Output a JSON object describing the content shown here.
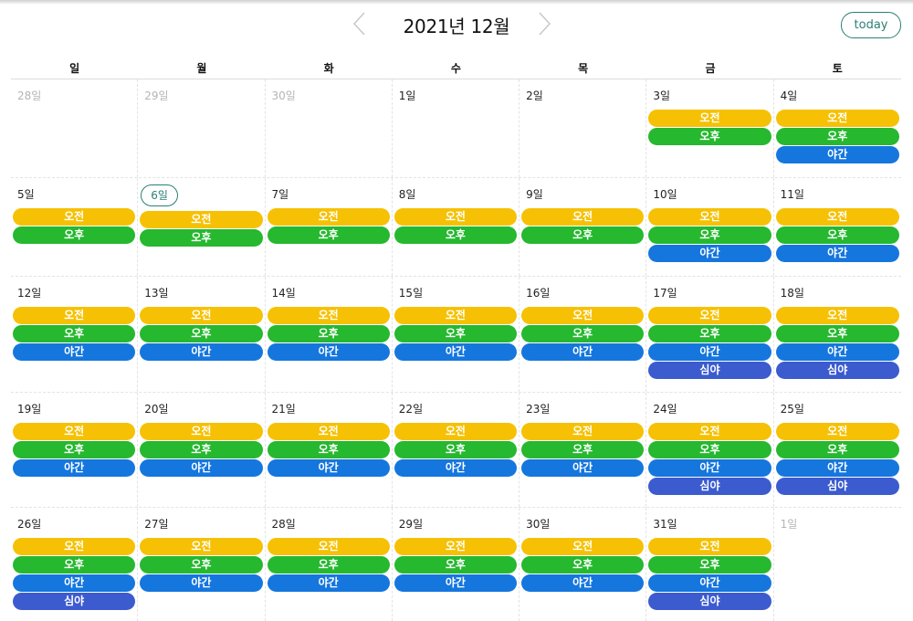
{
  "header": {
    "title": "2021년 12월",
    "today_label": "today",
    "prev_icon": "chevron-left-icon",
    "next_icon": "chevron-right-icon"
  },
  "weekdays": [
    "일",
    "월",
    "화",
    "수",
    "목",
    "금",
    "토"
  ],
  "shifts": {
    "am": "오전",
    "pm": "오후",
    "evening": "야간",
    "night": "심야"
  },
  "colors": {
    "am": "#f6c104",
    "pm": "#26b82f",
    "evening": "#1576de",
    "night": "#3b5bcf",
    "accent": "#2b7f76"
  },
  "weeks": [
    {
      "days": [
        {
          "label": "28일",
          "other": true,
          "events": []
        },
        {
          "label": "29일",
          "other": true,
          "events": []
        },
        {
          "label": "30일",
          "other": true,
          "events": []
        },
        {
          "label": "1일",
          "events": []
        },
        {
          "label": "2일",
          "events": []
        },
        {
          "label": "3일",
          "events": [
            "am",
            "pm"
          ]
        },
        {
          "label": "4일",
          "events": [
            "am",
            "pm",
            "evening"
          ]
        }
      ]
    },
    {
      "days": [
        {
          "label": "5일",
          "events": [
            "am",
            "pm"
          ]
        },
        {
          "label": "6일",
          "today": true,
          "events": [
            "am",
            "pm"
          ]
        },
        {
          "label": "7일",
          "events": [
            "am",
            "pm"
          ]
        },
        {
          "label": "8일",
          "events": [
            "am",
            "pm"
          ]
        },
        {
          "label": "9일",
          "events": [
            "am",
            "pm"
          ]
        },
        {
          "label": "10일",
          "events": [
            "am",
            "pm",
            "evening"
          ]
        },
        {
          "label": "11일",
          "events": [
            "am",
            "pm",
            "evening"
          ]
        }
      ]
    },
    {
      "days": [
        {
          "label": "12일",
          "events": [
            "am",
            "pm",
            "evening"
          ]
        },
        {
          "label": "13일",
          "events": [
            "am",
            "pm",
            "evening"
          ]
        },
        {
          "label": "14일",
          "events": [
            "am",
            "pm",
            "evening"
          ]
        },
        {
          "label": "15일",
          "events": [
            "am",
            "pm",
            "evening"
          ]
        },
        {
          "label": "16일",
          "events": [
            "am",
            "pm",
            "evening"
          ]
        },
        {
          "label": "17일",
          "events": [
            "am",
            "pm",
            "evening",
            "night"
          ]
        },
        {
          "label": "18일",
          "events": [
            "am",
            "pm",
            "evening",
            "night"
          ]
        }
      ]
    },
    {
      "days": [
        {
          "label": "19일",
          "events": [
            "am",
            "pm",
            "evening"
          ]
        },
        {
          "label": "20일",
          "events": [
            "am",
            "pm",
            "evening"
          ]
        },
        {
          "label": "21일",
          "events": [
            "am",
            "pm",
            "evening"
          ]
        },
        {
          "label": "22일",
          "events": [
            "am",
            "pm",
            "evening"
          ]
        },
        {
          "label": "23일",
          "events": [
            "am",
            "pm",
            "evening"
          ]
        },
        {
          "label": "24일",
          "events": [
            "am",
            "pm",
            "evening",
            "night"
          ]
        },
        {
          "label": "25일",
          "events": [
            "am",
            "pm",
            "evening",
            "night"
          ]
        }
      ]
    },
    {
      "days": [
        {
          "label": "26일",
          "events": [
            "am",
            "pm",
            "evening",
            "night"
          ]
        },
        {
          "label": "27일",
          "events": [
            "am",
            "pm",
            "evening"
          ]
        },
        {
          "label": "28일",
          "events": [
            "am",
            "pm",
            "evening"
          ]
        },
        {
          "label": "29일",
          "events": [
            "am",
            "pm",
            "evening"
          ]
        },
        {
          "label": "30일",
          "events": [
            "am",
            "pm",
            "evening"
          ]
        },
        {
          "label": "31일",
          "events": [
            "am",
            "pm",
            "evening",
            "night"
          ]
        },
        {
          "label": "1일",
          "other": true,
          "events": []
        }
      ]
    }
  ]
}
